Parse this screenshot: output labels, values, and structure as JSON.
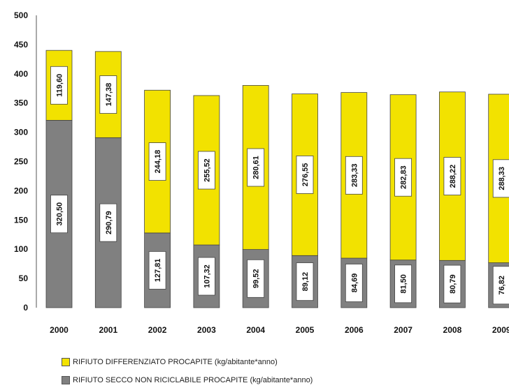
{
  "chart_data": {
    "type": "bar",
    "stacked": true,
    "categories": [
      "2000",
      "2001",
      "2002",
      "2003",
      "2004",
      "2005",
      "2006",
      "2007",
      "2008",
      "2009"
    ],
    "series": [
      {
        "name": "RIFIUTO SECCO NON RICICLABILE PROCAPITE (kg/abitante*anno)",
        "color": "#808080",
        "values": [
          320.5,
          290.79,
          127.81,
          107.32,
          99.52,
          89.12,
          84.69,
          81.5,
          80.79,
          76.82
        ],
        "labels": [
          "320,50",
          "290,79",
          "127,81",
          "107,32",
          "99,52",
          "89,12",
          "84,69",
          "81,50",
          "80,79",
          "76,82"
        ]
      },
      {
        "name": "RIFIUTO DIFFERENZIATO PROCAPITE (kg/abitante*anno)",
        "color": "#f2e200",
        "values": [
          119.6,
          147.38,
          244.18,
          255.52,
          280.61,
          276.55,
          283.33,
          282.83,
          288.22,
          288.33
        ],
        "labels": [
          "119,60",
          "147,38",
          "244,18",
          "255,52",
          "280,61",
          "276,55",
          "283,33",
          "282,83",
          "288,22",
          "288,33"
        ]
      }
    ],
    "ylim": [
      0,
      500
    ],
    "yticks": [
      "0",
      "50",
      "100",
      "150",
      "200",
      "250",
      "300",
      "350",
      "400",
      "450",
      "500"
    ],
    "grid": false,
    "legend_position": "bottom",
    "title": "",
    "xlabel": "",
    "ylabel": ""
  },
  "legend": {
    "items": [
      {
        "label": "RIFIUTO DIFFERENZIATO PROCAPITE (kg/abitante*anno)",
        "color": "#f2e200"
      },
      {
        "label": "RIFIUTO SECCO NON RICICLABILE PROCAPITE (kg/abitante*anno)",
        "color": "#808080"
      }
    ]
  }
}
